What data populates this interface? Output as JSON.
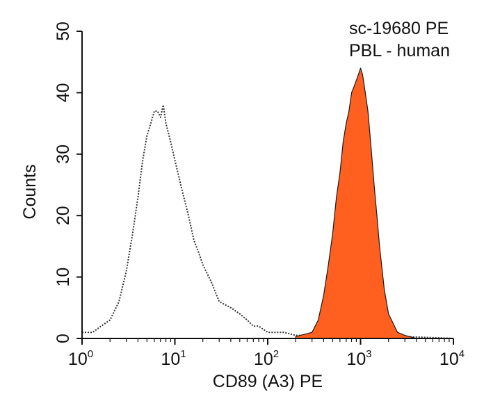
{
  "chart_data": {
    "type": "area",
    "title": "",
    "annotations": [
      "sc-19680 PE",
      "PBL - human"
    ],
    "xlabel": "CD89 (A3) PE",
    "ylabel": "Counts",
    "x_scale": "log",
    "xlim": [
      1,
      10000
    ],
    "ylim": [
      0,
      50
    ],
    "x_ticks": [
      {
        "value": 1,
        "base": "10",
        "exp": "0"
      },
      {
        "value": 10,
        "base": "10",
        "exp": "1"
      },
      {
        "value": 100,
        "base": "10",
        "exp": "2"
      },
      {
        "value": 1000,
        "base": "10",
        "exp": "3"
      },
      {
        "value": 10000,
        "base": "10",
        "exp": "4"
      }
    ],
    "y_ticks": [
      0,
      10,
      20,
      30,
      40,
      50
    ],
    "grid": false,
    "legend": "none",
    "series": [
      {
        "style": "dotted-outline",
        "color": "#333333",
        "x": [
          1.0,
          1.3,
          1.6,
          2.0,
          2.5,
          3.0,
          3.5,
          4.0,
          4.5,
          5.0,
          5.5,
          6.0,
          6.5,
          7.0,
          7.5,
          8.0,
          9.0,
          10,
          12,
          14,
          16,
          18,
          20,
          25,
          30,
          40,
          50,
          60,
          70,
          80,
          100,
          150,
          200,
          300,
          1000,
          3000,
          10000
        ],
        "values": [
          1,
          1,
          2,
          3,
          6,
          11,
          17,
          23,
          29,
          33,
          35,
          37,
          37,
          36,
          38,
          35,
          32,
          29,
          24,
          20,
          16,
          14,
          12,
          9,
          6,
          5,
          4,
          3,
          2,
          2,
          1,
          1,
          0.5,
          0.5,
          0.3,
          0.3,
          0
        ]
      },
      {
        "style": "filled",
        "color": "#FF5F1F",
        "outline": "#1a1a1a",
        "x": [
          200,
          300,
          350,
          400,
          450,
          500,
          550,
          600,
          650,
          700,
          750,
          800,
          850,
          900,
          950,
          1000,
          1050,
          1100,
          1200,
          1300,
          1400,
          1500,
          1600,
          1800,
          2000,
          2500,
          3000,
          4000
        ],
        "values": [
          0.3,
          1,
          3,
          7,
          12,
          17,
          23,
          27,
          32,
          35,
          37,
          40,
          41,
          42,
          43,
          44,
          43,
          41,
          37,
          31,
          25,
          20,
          15,
          8,
          4,
          1,
          0.5,
          0
        ]
      }
    ]
  }
}
